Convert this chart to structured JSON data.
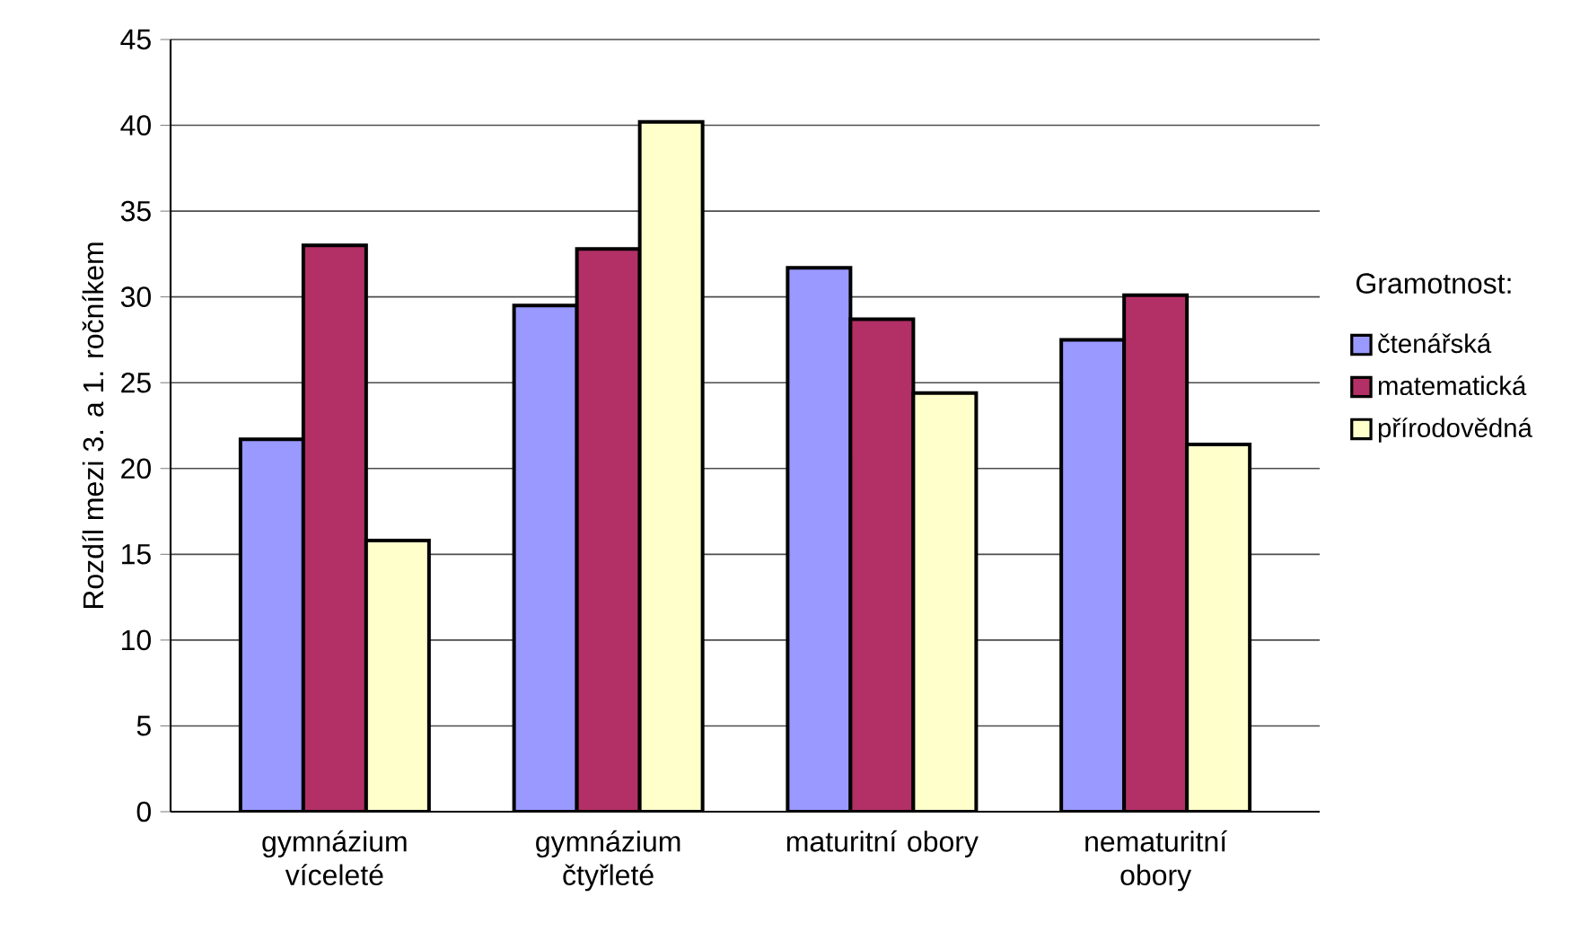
{
  "chart_data": {
    "type": "bar",
    "ylabel": "Rozdíl mezi 3. a 1. ročníkem",
    "legend_title": "Gramotnost:",
    "categories": [
      "gymnázium víceleté",
      "gymnázium čtyřleté",
      "maturitní obory",
      "nematuritní obory"
    ],
    "series": [
      {
        "name": "čtenářská",
        "color": "#9999ff",
        "values": [
          21.7,
          29.5,
          31.7,
          27.5
        ]
      },
      {
        "name": "matematická",
        "color": "#b23066",
        "values": [
          33.0,
          32.8,
          28.7,
          30.1
        ]
      },
      {
        "name": "přírodovědná",
        "color": "#ffffcc",
        "values": [
          15.8,
          40.2,
          24.4,
          21.4
        ]
      }
    ],
    "ylim": [
      0,
      45
    ],
    "yticks": [
      0,
      5,
      10,
      15,
      20,
      25,
      30,
      35,
      40,
      45
    ],
    "grid": "y",
    "legend": "right"
  }
}
